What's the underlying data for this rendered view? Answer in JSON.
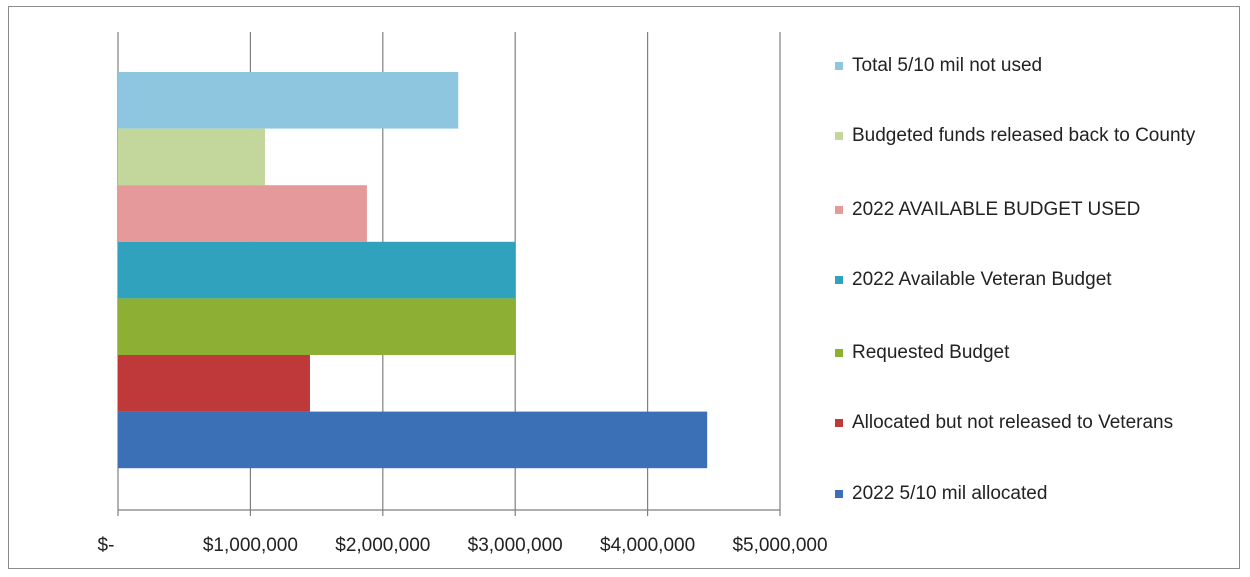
{
  "chart_data": {
    "type": "bar",
    "orientation": "horizontal",
    "title": "",
    "xlabel": "",
    "ylabel": "",
    "xlim": [
      0,
      5000000
    ],
    "x_ticks": [
      0,
      1000000,
      2000000,
      3000000,
      4000000,
      5000000
    ],
    "x_tick_labels": [
      "$-",
      "$1,000,000",
      "$2,000,000",
      "$3,000,000",
      "$4,000,000",
      "$5,000,000"
    ],
    "grid": "vertical",
    "legend_position": "right",
    "series": [
      {
        "name": "Total 5/10 mil not used",
        "value": 2570000,
        "color": "#8fc6df"
      },
      {
        "name": "Budgeted funds released back to County",
        "value": 1110000,
        "color": "#c3d69b"
      },
      {
        "name": "2022 AVAILABLE BUDGET USED",
        "value": 1880000,
        "color": "#e6999a"
      },
      {
        "name": "2022 Available Veteran Budget",
        "value": 3000000,
        "color": "#31a2bd"
      },
      {
        "name": "Requested Budget",
        "value": 3000000,
        "color": "#8db034"
      },
      {
        "name": "Allocated but not released to Veterans",
        "value": 1450000,
        "color": "#c0393a"
      },
      {
        "name": "2022 5/10 mil allocated",
        "value": 4450000,
        "color": "#3c70b6"
      }
    ],
    "legend_order": [
      {
        "label": "Total 5/10 mil not used",
        "color": "#8fc6df"
      },
      {
        "label": "Budgeted funds released back to County",
        "color": "#c3d69b"
      },
      {
        "label": "2022 AVAILABLE BUDGET USED",
        "color": "#e6999a"
      },
      {
        "label": "2022 Available Veteran Budget",
        "color": "#31a2bd"
      },
      {
        "label": "Requested Budget",
        "color": "#8db034"
      },
      {
        "label": "Allocated but not released to Veterans",
        "color": "#c0393a"
      },
      {
        "label": "2022 5/10 mil allocated",
        "color": "#3c70b6"
      }
    ]
  }
}
